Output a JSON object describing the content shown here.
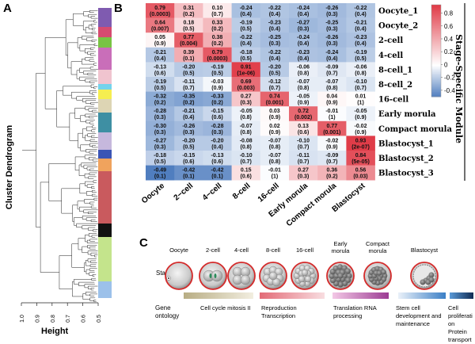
{
  "panels": {
    "a": "A",
    "b": "B",
    "c": "C"
  },
  "dendrogram": {
    "ylabel": "Cluster Dendrogram",
    "xlabel": "Height",
    "ticks": [
      "1.0",
      "0.9",
      "0.8",
      "0.7",
      "0.6",
      "0.5"
    ],
    "module_colors": [
      "#7f5bb0",
      "#d64b70",
      "#78c443",
      "#c96eb9",
      "#f0c4cf",
      "#74d3ec",
      "#f5ee50",
      "#ddd5b4",
      "#3e8fa3",
      "#c6b8dd",
      "#3b55b5",
      "#f0a35d",
      "#c95a5e",
      "#111111",
      "#c4e48c",
      "#9cc1ea"
    ]
  },
  "heatmap": {
    "columns": [
      "Oocyte",
      "2−cell",
      "4−cell",
      "8-cell",
      "16-cell",
      "Early morula",
      "Compact morula",
      "Blastocyst"
    ],
    "rows": [
      "Oocyte_1",
      "Oocyte_2",
      "2-cell",
      "4-cell",
      "8-cell_1",
      "8-cell_2",
      "16-cell",
      "Early morula",
      "Compact morula",
      "Blastocyst_1",
      "Blastocyst_2",
      "Blastocyst_3"
    ],
    "r": [
      [
        "0.79",
        "0.31",
        "0.10",
        "-0.24",
        "-0.22",
        "-0.24",
        "-0.26",
        "-0.22"
      ],
      [
        "0.64",
        "0.18",
        "0.33",
        "-0.19",
        "-0.23",
        "-0.27",
        "-0.25",
        "-0.21"
      ],
      [
        "0.05",
        "0.77",
        "0.38",
        "-0.22",
        "-0.25",
        "-0.24",
        "-0.26",
        "-0.23"
      ],
      [
        "-0.21",
        "0.39",
        "0.79",
        "-0.18",
        "-0.22",
        "-0.23",
        "-0.24",
        "-0.19"
      ],
      [
        "-0.13",
        "-0.20",
        "-0.19",
        "0.91",
        "-0.20",
        "-0.06",
        "-0.09",
        "-0.06"
      ],
      [
        "-0.19",
        "-0.11",
        "-0.03",
        "0.69",
        "-0.12",
        "-0.07",
        "-0.07",
        "-0.10"
      ],
      [
        "-0.32",
        "-0.35",
        "-0.33",
        "0.27",
        "0.74",
        "-0.05",
        "0.04",
        "0.01"
      ],
      [
        "-0.28",
        "-0.21",
        "-0.15",
        "-0.05",
        "0.03",
        "0.72",
        "-0.01",
        "-0.05"
      ],
      [
        "-0.30",
        "-0.26",
        "-0.28",
        "-0.07",
        "0.02",
        "0.13",
        "0.77",
        "-0.02"
      ],
      [
        "-0.27",
        "-0.20",
        "-0.20",
        "-0.08",
        "-0.07",
        "-0.10",
        "-0.02",
        "0.93"
      ],
      [
        "-0.18",
        "-0.15",
        "-0.13",
        "-0.10",
        "-0.07",
        "-0.11",
        "-0.09",
        "0.84"
      ],
      [
        "-0.49",
        "-0.42",
        "-0.42",
        "0.15",
        "-0.01",
        "0.27",
        "0.36",
        "0.56"
      ]
    ],
    "p": [
      [
        "(0.0003)",
        "(0.2)",
        "(0.7)",
        "(0.4)",
        "(0.4)",
        "(0.4)",
        "(0.3)",
        "(0.4)"
      ],
      [
        "(0.007)",
        "(0.5)",
        "(0.2)",
        "(0.5)",
        "(0.4)",
        "(0.3)",
        "(0.3)",
        "(0.4)"
      ],
      [
        "(0.9)",
        "(0.004)",
        "(0.2)",
        "(0.4)",
        "(0.3)",
        "(0.4)",
        "(0.3)",
        "(0.4)"
      ],
      [
        "(0.4)",
        "(0.1)",
        "(0.0003)",
        "(0.5)",
        "(0.4)",
        "(0.4)",
        "(0.4)",
        "(0.5)"
      ],
      [
        "(0.6)",
        "(0.5)",
        "(0.5)",
        "(1e-06)",
        "(0.5)",
        "(0.8)",
        "(0.7)",
        "(0.8)"
      ],
      [
        "(0.5)",
        "(0.7)",
        "(0.9)",
        "(0.003)",
        "(0.7)",
        "(0.8)",
        "(0.8)",
        "(0.7)"
      ],
      [
        "(0.2)",
        "(0.2)",
        "(0.2)",
        "(0.3)",
        "(0.001)",
        "(0.9)",
        "(0.9)",
        "(1)"
      ],
      [
        "(0.3)",
        "(0.4)",
        "(0.6)",
        "(0.8)",
        "(0.9)",
        "(0.002)",
        "(1)",
        "(0.9)"
      ],
      [
        "(0.3)",
        "(0.3)",
        "(0.3)",
        "(0.8)",
        "(0.9)",
        "(0.6)",
        "(0.001)",
        "(0.9)"
      ],
      [
        "(0.3)",
        "(0.5)",
        "(0.4)",
        "(0.8)",
        "(0.8)",
        "(0.7)",
        "(0.9)",
        "(2e-07)"
      ],
      [
        "(0.5)",
        "(0.6)",
        "(0.6)",
        "(0.7)",
        "(0.8)",
        "(0.7)",
        "(0.7)",
        "(5e-05)"
      ],
      [
        "(0.1)",
        "(0.1)",
        "(0.1)",
        "(0.6)",
        "(1)",
        "(0.3)",
        "(0.2)",
        "(0.03)"
      ]
    ],
    "colorbar": {
      "ticks": [
        "0.8",
        "0.6",
        "0.4",
        "0.2",
        "0",
        "-0.2",
        "-0.4"
      ],
      "range": [
        -0.5,
        0.93
      ]
    },
    "side_label": "Stage-Specific Module"
  },
  "schematic": {
    "row_stage": "Stage",
    "row_go": "Gene ontology",
    "stages": [
      "Oocyte",
      "2-cell",
      "4-cell",
      "8-cell",
      "16-cell",
      "Early morula",
      "Compact morula",
      "Blastocyst"
    ],
    "go_terms": [
      {
        "text": "Cell cycle mitosis II"
      },
      {
        "text": "Reproduction Transcription"
      },
      {
        "text": "Translation RNA processing"
      },
      {
        "text": "Stem cell development and maintenance"
      },
      {
        "text": "Cell proliferation Protein transport"
      }
    ]
  }
}
